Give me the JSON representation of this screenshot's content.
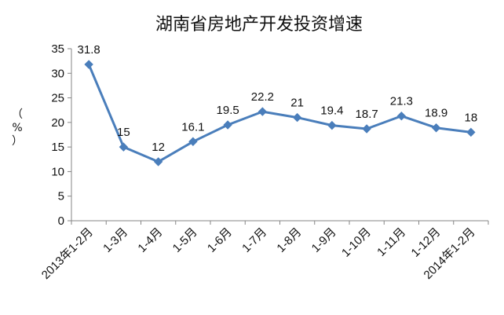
{
  "chart_data": {
    "type": "line",
    "title": "湖南省房地产开发投资增速",
    "ylabel": "（%）",
    "xlabel": "",
    "ylim": [
      0,
      35
    ],
    "yticks": [
      0,
      5,
      10,
      15,
      20,
      25,
      30,
      35
    ],
    "grid": false,
    "legend": "none",
    "categories": [
      "2013年1-2月",
      "1-3月",
      "1-4月",
      "1-5月",
      "1-6月",
      "1-7月",
      "1-8月",
      "1-9月",
      "1-10月",
      "1-11月",
      "1-12月",
      "2014年1-2月"
    ],
    "series": [
      {
        "values": [
          31.8,
          15,
          12,
          16.1,
          19.5,
          22.2,
          21,
          19.4,
          18.7,
          21.3,
          18.9,
          18
        ],
        "data_labels": [
          "31.8",
          "15",
          "12",
          "16.1",
          "19.5",
          "22.2",
          "21",
          "19.4",
          "18.7",
          "21.3",
          "18.9",
          "18"
        ],
        "color": "#4a7ebb"
      }
    ]
  }
}
